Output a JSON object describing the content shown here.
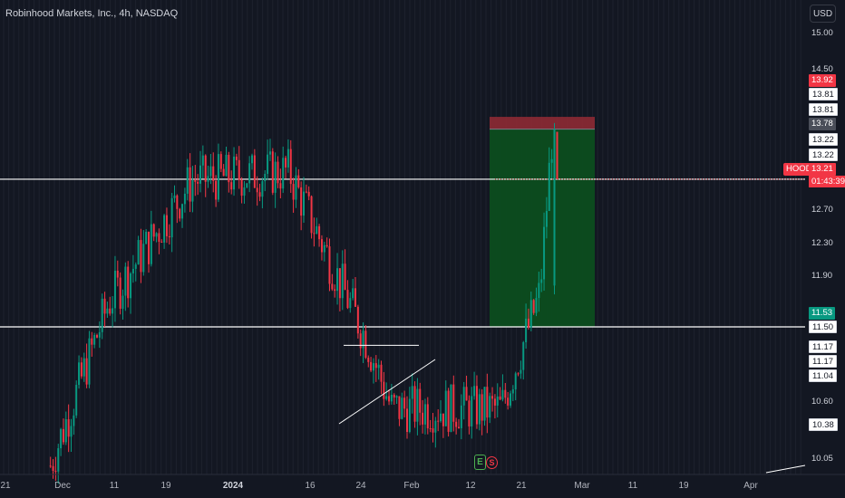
{
  "header": {
    "title": "Robinhood Markets, Inc., 4h, NASDAQ",
    "currency": "USD"
  },
  "symbol_tag": "HOOD",
  "countdown": "01:43:39",
  "price_axis": {
    "ticks": [
      "15.00",
      "14.50",
      "12.70",
      "12.30",
      "11.90",
      "10.60",
      "10.05"
    ],
    "static_labels": [
      "13.81",
      "13.81",
      "13.22",
      "13.22",
      "11.50",
      "11.17",
      "11.17",
      "11.04"
    ],
    "badges": {
      "stop": "13.92",
      "entry": "13.78",
      "current": "13.21",
      "target": "11.53",
      "low": "10.38"
    }
  },
  "time_axis": {
    "labels": [
      "21",
      "Dec",
      "11",
      "19",
      "2024",
      "16",
      "24",
      "Feb",
      "12",
      "21",
      "Mar",
      "11",
      "19",
      "Apr"
    ]
  },
  "events": {
    "earnings": "E",
    "split": "S"
  },
  "colors": {
    "background": "#131722",
    "up": "#089981",
    "down": "#f23645",
    "long_zone": "#0c4d1f",
    "stop_zone": "#8e2a34"
  },
  "chart_data": {
    "type": "candlestick",
    "title": "Robinhood Markets, Inc., 4h, NASDAQ",
    "ylim": [
      9.85,
      15.25
    ],
    "horizontal_lines": [
      13.21,
      11.53
    ],
    "position_tool": {
      "type": "short",
      "stop": 13.92,
      "entry": 13.78,
      "target": 11.53
    },
    "trendlines": [
      {
        "from": [
          "2024-01-19",
          10.55
        ],
        "to": [
          "2024-02-06",
          11.3
        ]
      },
      {
        "from": [
          "2024-01-19",
          11.32
        ],
        "to": [
          "2024-02-02",
          11.32
        ]
      }
    ],
    "key_points": [
      {
        "t": "2023-11-28",
        "price": 9.95
      },
      {
        "t": "2023-12-07",
        "price": 11.8
      },
      {
        "t": "2023-12-20",
        "price": 13.2
      },
      {
        "t": "2024-01-04",
        "price": 13.3
      },
      {
        "t": "2024-01-16",
        "price": 11.4
      },
      {
        "t": "2024-01-20",
        "price": 10.6
      },
      {
        "t": "2024-02-06",
        "price": 10.6
      },
      {
        "t": "2024-02-12",
        "price": 11.9
      },
      {
        "t": "2024-02-14",
        "price": 13.78
      }
    ]
  }
}
